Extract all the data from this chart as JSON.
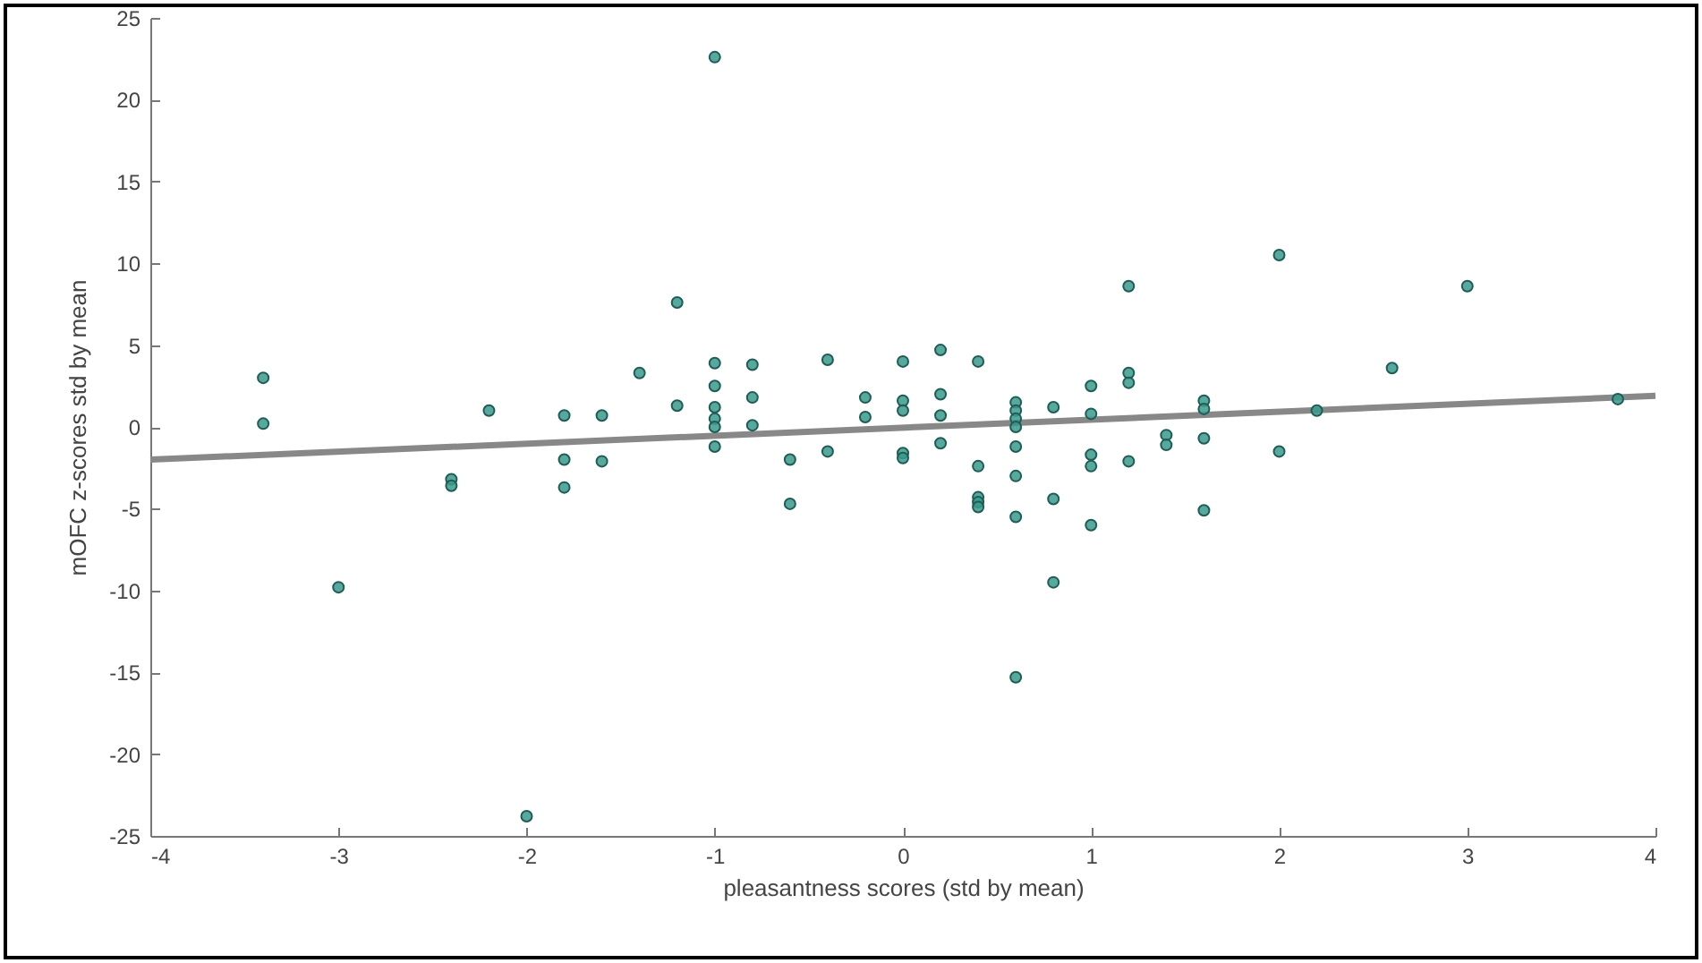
{
  "chart_data": {
    "type": "scatter",
    "xlabel": "pleasantness scores (std by mean)",
    "ylabel": "mOFC z-scores std by mean",
    "xlim": [
      -4,
      4
    ],
    "xticks": [
      -4,
      -3,
      -2,
      -1,
      0,
      1,
      2,
      3,
      4
    ],
    "ylim": [
      -25,
      25
    ],
    "yticks": [
      -25,
      -20,
      -15,
      -10,
      -5,
      0,
      5,
      10,
      15,
      20,
      25
    ],
    "grid": false,
    "marker": "circle",
    "series": [
      {
        "color": "#3a9a8c",
        "x": [
          -3.4,
          -3.4,
          -3,
          -2.4,
          -2.4,
          -2.2,
          -2,
          -1.8,
          -1.8,
          -1.8,
          -1.6,
          -1.6,
          -1.4,
          -1.2,
          -1.2,
          -1,
          -1,
          -1,
          -1,
          -1,
          -1,
          -1,
          -0.8,
          -0.8,
          -0.8,
          -0.6,
          -0.6,
          -0.4,
          -0.4,
          -0.2,
          -0.2,
          0,
          0,
          0,
          0,
          0,
          0.2,
          0.2,
          0.2,
          0.2,
          0.4,
          0.4,
          0.4,
          0.4,
          0.4,
          0.6,
          0.6,
          0.6,
          0.6,
          0.6,
          0.6,
          0.6,
          0.6,
          0.8,
          0.8,
          0.8,
          1,
          1,
          1,
          1,
          1,
          1.2,
          1.2,
          1.2,
          1.2,
          1.4,
          1.4,
          1.6,
          1.6,
          1.6,
          1.6,
          2,
          2,
          2.2,
          2.6,
          3,
          3.8
        ],
        "values": [
          3.0,
          0.2,
          -9.8,
          -3.2,
          -3.6,
          1.0,
          -23.8,
          0.7,
          -2.0,
          -3.7,
          0.7,
          -2.1,
          3.3,
          7.6,
          1.3,
          22.6,
          3.9,
          2.5,
          1.2,
          0.5,
          0,
          -1.2,
          3.8,
          1.8,
          0.1,
          -2.0,
          -4.7,
          4.1,
          -1.5,
          1.8,
          0.6,
          4.0,
          1.6,
          1.0,
          -1.6,
          -1.9,
          4.7,
          2.0,
          0.7,
          -1.0,
          4.0,
          -2.4,
          -4.3,
          -4.6,
          -4.9,
          1.5,
          1.0,
          0.5,
          0,
          -1.2,
          -3.0,
          -5.5,
          -15.3,
          1.2,
          -4.4,
          -9.5,
          2.5,
          0.8,
          -1.7,
          -2.4,
          -6.0,
          8.6,
          3.3,
          2.7,
          -2.1,
          -0.5,
          -1.1,
          1.6,
          1.1,
          -0.7,
          -5.1,
          10.5,
          -1.5,
          1.0,
          3.6,
          8.6,
          1.7
        ]
      },
      {
        "type": "line",
        "marker": "none",
        "color": "#888888",
        "x": [
          -4,
          4
        ],
        "values": [
          -2.0,
          1.9
        ]
      }
    ]
  }
}
